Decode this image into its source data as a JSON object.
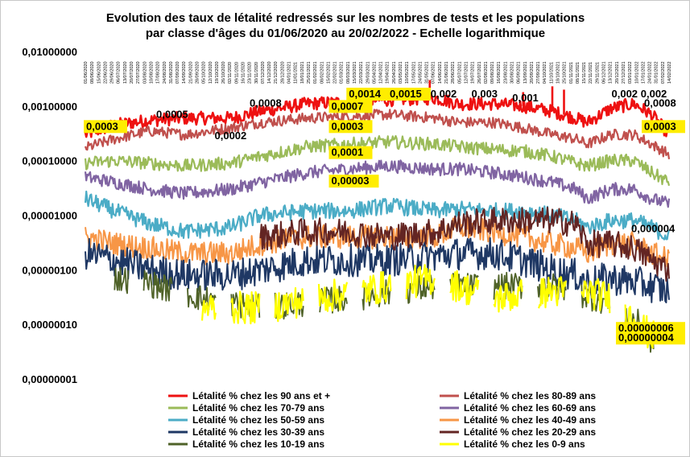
{
  "chart_data": {
    "type": "line",
    "title_lines": [
      "Evolution des taux de létalité redressés sur les nombres de tests et les populations",
      "par classe d'âges du 01/06/2020 au 20/02/2022 - Echelle logarithmique"
    ],
    "y_scale": "log",
    "ylim": [
      1e-08,
      0.01
    ],
    "y_ticks": [
      "0,01000000",
      "0,00100000",
      "0,00010000",
      "0,00001000",
      "0,00000100",
      "0,00000010",
      "0,00000001"
    ],
    "x_range": [
      "01/06/2020",
      "20/02/2022"
    ],
    "x_tick_labels": [
      "01/06/2020",
      "08/06/2020",
      "15/06/2020",
      "22/06/2020",
      "29/06/2020",
      "06/07/2020",
      "13/07/2020",
      "20/07/2020",
      "27/07/2020",
      "03/08/2020",
      "10/08/2020",
      "17/08/2020",
      "24/08/2020",
      "31/08/2020",
      "07/09/2020",
      "14/09/2020",
      "21/09/2020",
      "28/09/2020",
      "05/10/2020",
      "12/10/2020",
      "19/10/2020",
      "26/10/2020",
      "02/11/2020",
      "09/11/2020",
      "16/11/2020",
      "23/11/2020",
      "30/11/2020",
      "07/12/2020",
      "14/12/2020",
      "21/12/2020",
      "28/12/2020",
      "04/01/2021",
      "11/01/2021",
      "18/01/2021",
      "25/01/2021",
      "01/02/2021",
      "08/02/2021",
      "15/02/2021",
      "22/02/2021",
      "01/03/2021",
      "08/03/2021",
      "15/03/2021",
      "22/03/2021",
      "29/03/2021",
      "05/04/2021",
      "12/04/2021",
      "19/04/2021",
      "26/04/2021",
      "03/05/2021",
      "10/05/2021",
      "17/05/2021",
      "24/05/2021",
      "31/05/2021",
      "07/06/2021",
      "14/06/2021",
      "21/06/2021",
      "28/06/2021",
      "05/07/2021",
      "12/07/2021",
      "19/07/2021",
      "26/07/2021",
      "02/08/2021",
      "09/08/2021",
      "16/08/2021",
      "23/08/2021",
      "30/08/2021",
      "06/09/2021",
      "13/09/2021",
      "20/09/2021",
      "27/09/2021",
      "04/10/2021",
      "11/10/2021",
      "18/10/2021",
      "25/10/2021",
      "01/11/2021",
      "08/11/2021",
      "15/11/2021",
      "22/11/2021",
      "29/11/2021",
      "06/12/2021",
      "13/12/2021",
      "20/12/2021",
      "27/12/2021",
      "03/01/2022",
      "10/01/2022",
      "17/01/2022",
      "24/01/2022",
      "31/01/2022",
      "07/02/2022",
      "14/02/2022"
    ],
    "legend_position": "bottom",
    "grid": false,
    "series": [
      {
        "name": "Létalité % chez les 90 ans et +",
        "color": "#ee1111",
        "width": 2.6,
        "points": [
          [
            0,
            0.0003
          ],
          [
            0.05,
            0.00045
          ],
          [
            0.11,
            0.00055
          ],
          [
            0.17,
            0.0006
          ],
          [
            0.25,
            0.0006
          ],
          [
            0.3,
            0.0008
          ],
          [
            0.38,
            0.0011
          ],
          [
            0.45,
            0.0012
          ],
          [
            0.52,
            0.0013
          ],
          [
            0.6,
            0.0014
          ],
          [
            0.64,
            0.0011
          ],
          [
            0.7,
            0.0011
          ],
          [
            0.75,
            0.001
          ],
          [
            0.8,
            0.0008
          ],
          [
            0.84,
            0.0006
          ],
          [
            0.86,
            0.0005
          ],
          [
            0.9,
            0.0009
          ],
          [
            0.94,
            0.0011
          ],
          [
            0.97,
            0.0007
          ],
          [
            1,
            0.0003
          ]
        ],
        "noise": 0.12,
        "spikes": [
          [
            0.59,
            0.003
          ],
          [
            0.75,
            0.0018
          ],
          [
            0.8,
            0.0023
          ],
          [
            0.82,
            0.002
          ]
        ]
      },
      {
        "name": "Létalité % chez les 80-89 ans",
        "color": "#c0504d",
        "width": 2.2,
        "points": [
          [
            0,
            0.00017
          ],
          [
            0.05,
            0.00025
          ],
          [
            0.11,
            0.00035
          ],
          [
            0.17,
            0.0003
          ],
          [
            0.25,
            0.0004
          ],
          [
            0.3,
            0.0005
          ],
          [
            0.38,
            0.0006
          ],
          [
            0.45,
            0.00065
          ],
          [
            0.52,
            0.0007
          ],
          [
            0.6,
            0.0006
          ],
          [
            0.64,
            0.0005
          ],
          [
            0.7,
            0.0005
          ],
          [
            0.75,
            0.0004
          ],
          [
            0.8,
            0.0003
          ],
          [
            0.84,
            0.00025
          ],
          [
            0.86,
            0.0002
          ],
          [
            0.9,
            0.0003
          ],
          [
            0.94,
            0.0003
          ],
          [
            0.97,
            0.0002
          ],
          [
            1,
            0.00013
          ]
        ],
        "noise": 0.1,
        "spikes": []
      },
      {
        "name": "Létalité % chez les 60-69 ans",
        "color": "#8064a2",
        "width": 2.2,
        "points": [
          [
            0,
            5e-05
          ],
          [
            0.05,
            4e-05
          ],
          [
            0.11,
            3e-05
          ],
          [
            0.17,
            2.5e-05
          ],
          [
            0.25,
            3e-05
          ],
          [
            0.3,
            4e-05
          ],
          [
            0.38,
            6e-05
          ],
          [
            0.45,
            7e-05
          ],
          [
            0.52,
            8e-05
          ],
          [
            0.6,
            7e-05
          ],
          [
            0.64,
            7e-05
          ],
          [
            0.7,
            6e-05
          ],
          [
            0.75,
            5e-05
          ],
          [
            0.8,
            4e-05
          ],
          [
            0.84,
            3e-05
          ],
          [
            0.86,
            2e-05
          ],
          [
            0.9,
            3e-05
          ],
          [
            0.94,
            3e-05
          ],
          [
            0.97,
            2e-05
          ],
          [
            1,
            1.6e-05
          ]
        ],
        "noise": 0.12,
        "spikes": []
      },
      {
        "name": "Létalité % chez les 70-79 ans",
        "color": "#9bbb59",
        "width": 2.2,
        "points": [
          [
            0,
            9e-05
          ],
          [
            0.05,
            0.0001
          ],
          [
            0.11,
            9e-05
          ],
          [
            0.17,
            8e-05
          ],
          [
            0.25,
            9e-05
          ],
          [
            0.3,
            0.00012
          ],
          [
            0.38,
            0.00018
          ],
          [
            0.45,
            0.0002
          ],
          [
            0.52,
            0.00022
          ],
          [
            0.6,
            0.0002
          ],
          [
            0.64,
            0.00018
          ],
          [
            0.7,
            0.00016
          ],
          [
            0.75,
            0.00015
          ],
          [
            0.8,
            0.00012
          ],
          [
            0.84,
            9e-05
          ],
          [
            0.86,
            8e-05
          ],
          [
            0.9,
            0.0001
          ],
          [
            0.94,
            0.0001
          ],
          [
            0.97,
            6e-05
          ],
          [
            1,
            4e-05
          ]
        ],
        "noise": 0.12,
        "spikes": []
      },
      {
        "name": "Létalité % chez les 50-59 ans",
        "color": "#4bacc6",
        "width": 2.2,
        "points": [
          [
            0,
            2e-05
          ],
          [
            0.05,
            1.2e-05
          ],
          [
            0.11,
            7e-06
          ],
          [
            0.17,
            5e-06
          ],
          [
            0.25,
            6e-06
          ],
          [
            0.3,
            1e-05
          ],
          [
            0.38,
            1.2e-05
          ],
          [
            0.45,
            1.2e-05
          ],
          [
            0.52,
            1.5e-05
          ],
          [
            0.6,
            1.2e-05
          ],
          [
            0.64,
            1.3e-05
          ],
          [
            0.7,
            1.2e-05
          ],
          [
            0.75,
            1.2e-05
          ],
          [
            0.8,
            1e-05
          ],
          [
            0.84,
            8e-06
          ],
          [
            0.86,
            6e-06
          ],
          [
            0.9,
            8e-06
          ],
          [
            0.94,
            8e-06
          ],
          [
            0.97,
            6e-06
          ],
          [
            1,
            4e-06
          ]
        ],
        "noise": 0.15,
        "spikes": []
      },
      {
        "name": "Létalité % chez les 40-49 ans",
        "color": "#f79646",
        "width": 2.0,
        "points": [
          [
            0,
            4e-06
          ],
          [
            0.05,
            3e-06
          ],
          [
            0.11,
            2.5e-06
          ],
          [
            0.17,
            2e-06
          ],
          [
            0.25,
            2e-06
          ],
          [
            0.3,
            3e-06
          ],
          [
            0.38,
            4e-06
          ],
          [
            0.45,
            4e-06
          ],
          [
            0.52,
            4e-06
          ],
          [
            0.6,
            4e-06
          ],
          [
            0.64,
            6e-06
          ],
          [
            0.7,
            5e-06
          ],
          [
            0.75,
            4e-06
          ],
          [
            0.8,
            3e-06
          ],
          [
            0.84,
            2.5e-06
          ],
          [
            0.86,
            2e-06
          ],
          [
            0.9,
            3e-06
          ],
          [
            0.94,
            3e-06
          ],
          [
            0.97,
            2e-06
          ],
          [
            1,
            1.5e-06
          ]
        ],
        "noise": 0.22,
        "spikes": []
      },
      {
        "name": "Létalité % chez les 30-39 ans",
        "color": "#1f3864",
        "width": 2.0,
        "points": [
          [
            0,
            2e-06
          ],
          [
            0.05,
            1.5e-06
          ],
          [
            0.11,
            1e-06
          ],
          [
            0.17,
            8e-07
          ],
          [
            0.25,
            8e-07
          ],
          [
            0.3,
            1e-06
          ],
          [
            0.38,
            1.5e-06
          ],
          [
            0.45,
            1.5e-06
          ],
          [
            0.52,
            1.5e-06
          ],
          [
            0.6,
            1.8e-06
          ],
          [
            0.64,
            2e-06
          ],
          [
            0.7,
            2e-06
          ],
          [
            0.75,
            1.5e-06
          ],
          [
            0.8,
            1e-06
          ],
          [
            0.84,
            8e-07
          ],
          [
            0.86,
            6e-07
          ],
          [
            0.9,
            7e-07
          ],
          [
            0.94,
            6e-07
          ],
          [
            0.97,
            5e-07
          ],
          [
            1,
            4e-07
          ]
        ],
        "noise": 0.3,
        "spikes": []
      },
      {
        "name": "Létalité % chez les 20-29 ans",
        "color": "#632523",
        "width": 2.0,
        "points": [
          [
            0.3,
            4e-06
          ],
          [
            0.38,
            5e-06
          ],
          [
            0.45,
            5e-06
          ],
          [
            0.52,
            4e-06
          ],
          [
            0.6,
            5e-06
          ],
          [
            0.64,
            7e-06
          ],
          [
            0.7,
            8e-06
          ],
          [
            0.75,
            8e-06
          ],
          [
            0.8,
            8e-06
          ],
          [
            0.84,
            7e-06
          ],
          [
            0.86,
            3e-06
          ],
          [
            0.9,
            3e-06
          ],
          [
            0.94,
            2.5e-06
          ],
          [
            0.97,
            1.5e-06
          ],
          [
            1,
            1e-06
          ]
        ],
        "noise": 0.25,
        "spikes": []
      },
      {
        "name": "Létalité % chez les 10-19 ans",
        "color": "#4f6228",
        "width": 1.8,
        "points": [
          [
            0.05,
            7e-07
          ],
          [
            0.1,
            6e-07
          ],
          [
            0.2,
            3e-07
          ],
          [
            0.3,
            2e-07
          ],
          [
            0.45,
            3e-07
          ],
          [
            0.6,
            5e-07
          ],
          [
            0.8,
            5e-07
          ],
          [
            0.9,
            2.5e-07
          ],
          [
            0.95,
            1e-07
          ],
          [
            0.97,
            5e-08
          ],
          [
            1,
            4e-08
          ]
        ],
        "noise": 0.25,
        "spikes": [],
        "gaps": true
      },
      {
        "name": "Létalité % chez les 0-9 ans",
        "color": "#ffff00",
        "width": 2.2,
        "points": [
          [
            0.2,
            2e-07
          ],
          [
            0.3,
            2e-07
          ],
          [
            0.6,
            7e-07
          ],
          [
            0.7,
            3e-07
          ],
          [
            0.8,
            4e-07
          ],
          [
            0.86,
            4e-07
          ],
          [
            0.9,
            3e-07
          ],
          [
            0.94,
            1.2e-07
          ],
          [
            0.97,
            6e-08
          ],
          [
            1,
            6e-08
          ]
        ],
        "noise": 0.3,
        "spikes": [],
        "gaps": true
      }
    ],
    "annotations": [
      {
        "text": "0,0003",
        "x": 0.0,
        "y": 0.0003,
        "boxed": true
      },
      {
        "text": "0,0005",
        "x": 0.12,
        "y": 0.0005,
        "boxed": false
      },
      {
        "text": "0,0008",
        "x": 0.28,
        "y": 0.0008,
        "boxed": false
      },
      {
        "text": "0,0014",
        "x": 0.45,
        "y": 0.0014,
        "boxed": true
      },
      {
        "text": "0,0015",
        "x": 0.52,
        "y": 0.0015,
        "boxed": true
      },
      {
        "text": "0,002",
        "x": 0.59,
        "y": 0.002,
        "boxed": false
      },
      {
        "text": "0,003",
        "x": 0.66,
        "y": 0.003,
        "boxed": false
      },
      {
        "text": "0,001",
        "x": 0.73,
        "y": 0.001,
        "boxed": false
      },
      {
        "text": "0,002",
        "x": 0.9,
        "y": 0.002,
        "boxed": false
      },
      {
        "text": "0,002",
        "x": 0.95,
        "y": 0.002,
        "boxed": false
      },
      {
        "text": "0,0008",
        "x": 0.98,
        "y": 0.0008,
        "boxed": false
      },
      {
        "text": "0,0003",
        "x": 1.0,
        "y": 0.0003,
        "boxed": true
      },
      {
        "text": "0,0007",
        "x": 0.42,
        "y": 0.0007,
        "boxed": true
      },
      {
        "text": "0,0002",
        "x": 0.22,
        "y": 0.0002,
        "boxed": false
      },
      {
        "text": "0,0003",
        "x": 0.42,
        "y": 0.0003,
        "boxed": true
      },
      {
        "text": "0,0001",
        "x": 0.42,
        "y": 0.0001,
        "boxed": true
      },
      {
        "text": "0,00003",
        "x": 0.42,
        "y": 3e-05,
        "boxed": true
      },
      {
        "text": "0,000004",
        "x": 1.0,
        "y": 4e-06,
        "boxed": false
      },
      {
        "text": "0,00000006",
        "x": 0.98,
        "y": 6e-08,
        "boxed": true
      },
      {
        "text": "0,00000004",
        "x": 1.0,
        "y": 4e-08,
        "boxed": true
      }
    ]
  }
}
